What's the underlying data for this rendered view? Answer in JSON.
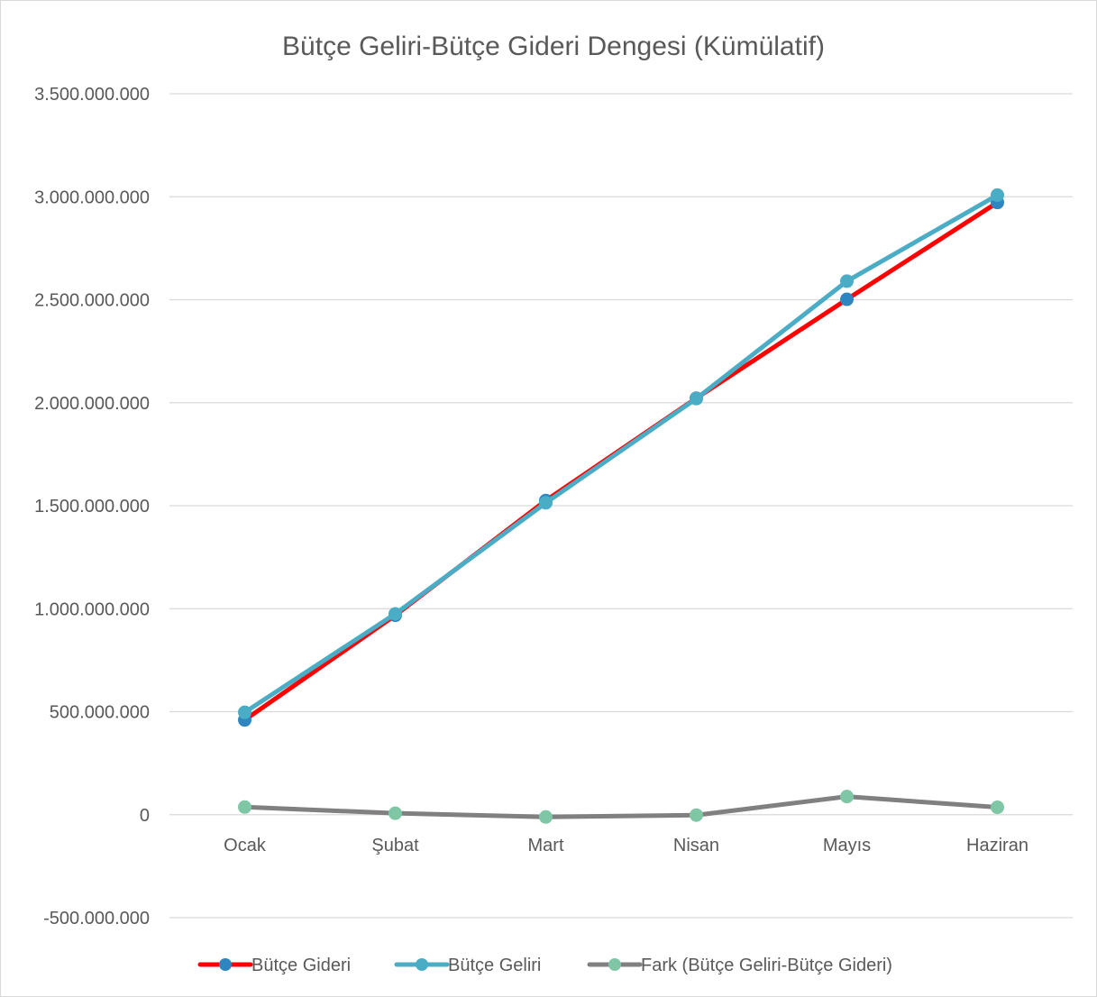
{
  "chart_data": {
    "type": "line",
    "title": "Bütçe Geliri-Bütçe Gideri Dengesi (Kümülatif)",
    "xlabel": "",
    "ylabel": "",
    "categories": [
      "Ocak",
      "Şubat",
      "Mart",
      "Nisan",
      "Mayıs",
      "Haziran"
    ],
    "ylim": [
      -500000000,
      3500000000
    ],
    "yticks": [
      -500000000,
      0,
      500000000,
      1000000000,
      1500000000,
      2000000000,
      2500000000,
      3000000000,
      3500000000
    ],
    "ytick_labels": [
      "-500.000.000",
      "0",
      "500.000.000",
      "1.000.000.000",
      "1.500.000.000",
      "2.000.000.000",
      "2.500.000.000",
      "3.000.000.000",
      "3.500.000.000"
    ],
    "grid": "horizontal",
    "legend_position": "bottom",
    "series": [
      {
        "name": "Bütçe Gideri",
        "values": [
          460000000,
          968000000,
          1525000000,
          2022000000,
          2502000000,
          2972000000
        ],
        "line_color": "#ff0000",
        "marker_color": "#2e86c1"
      },
      {
        "name": "Bütçe Geliri",
        "values": [
          497000000,
          975000000,
          1514000000,
          2020000000,
          2590000000,
          3008000000
        ],
        "line_color": "#4bacc6",
        "marker_color": "#4bacc6"
      },
      {
        "name": "Fark (Bütçe Geliri-Bütçe Gideri)",
        "values": [
          37000000,
          7000000,
          -11000000,
          -2000000,
          88000000,
          36000000
        ],
        "line_color": "#808080",
        "marker_color": "#7fc6a4"
      }
    ]
  }
}
